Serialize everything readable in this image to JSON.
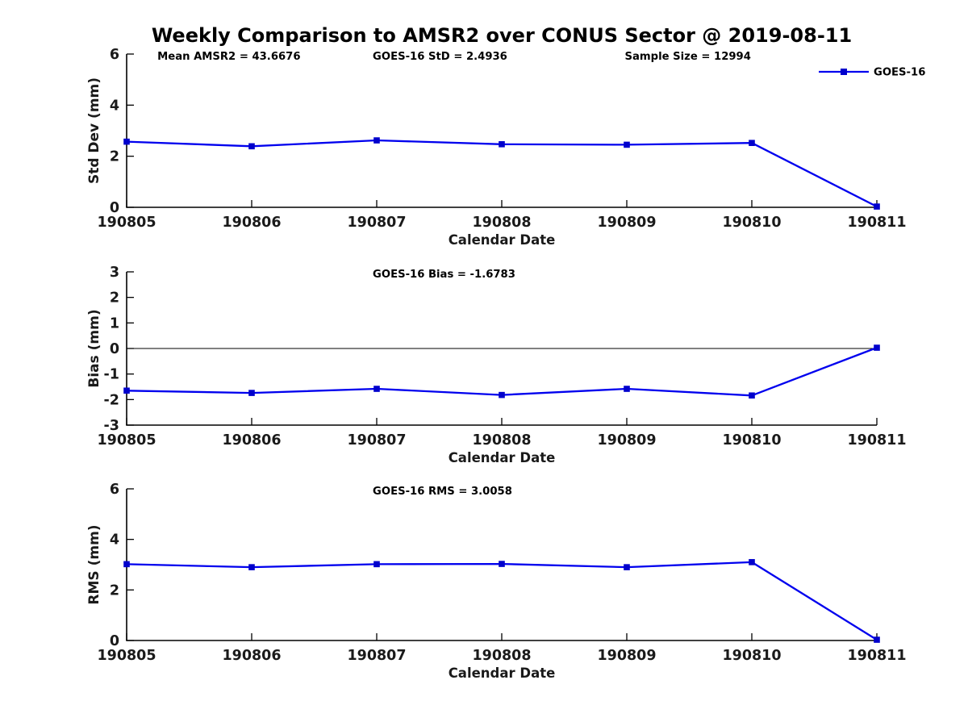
{
  "title": "Weekly Comparison to AMSR2 over CONUS Sector @ 2019-08-11",
  "legend": {
    "label": "GOES-16",
    "position": "top-right"
  },
  "colors": {
    "line": "#0000EE",
    "marker": "#0000CC",
    "axis": "#000000",
    "tick_text": "#1a1a1a",
    "annotation_text": "#000000",
    "background": "#ffffff"
  },
  "chart_data": [
    {
      "type": "line",
      "id": "std-dev",
      "xlabel": "Calendar Date",
      "ylabel": "Std Dev (mm)",
      "ylim": [
        0,
        6
      ],
      "yticks": [
        "0",
        "2",
        "4",
        "6"
      ],
      "x_categories": [
        "190805",
        "190806",
        "190807",
        "190808",
        "190809",
        "190810",
        "190811"
      ],
      "series": [
        {
          "name": "GOES-16",
          "marker": "square",
          "values": [
            2.57,
            2.39,
            2.62,
            2.47,
            2.45,
            2.52,
            0.03
          ]
        }
      ],
      "annotations": [
        {
          "text": "Mean AMSR2 = 43.6676",
          "xfrac": 0.041
        },
        {
          "text": "GOES-16 StD = 2.4936",
          "xfrac": 0.328
        },
        {
          "text": "Sample Size = 12994",
          "xfrac": 0.664
        }
      ],
      "zero_line": false,
      "legend_visible": true,
      "grid": false
    },
    {
      "type": "line",
      "id": "bias",
      "xlabel": "Calendar Date",
      "ylabel": "Bias (mm)",
      "ylim": [
        -3,
        3
      ],
      "yticks": [
        "-3",
        "-2",
        "-1",
        "0",
        "1",
        "2",
        "3"
      ],
      "x_categories": [
        "190805",
        "190806",
        "190807",
        "190808",
        "190809",
        "190810",
        "190811"
      ],
      "series": [
        {
          "name": "GOES-16",
          "marker": "square",
          "values": [
            -1.65,
            -1.74,
            -1.58,
            -1.82,
            -1.58,
            -1.84,
            0.03
          ]
        }
      ],
      "annotations": [
        {
          "text": "GOES-16 Bias  = -1.6783",
          "xfrac": 0.328
        }
      ],
      "zero_line": true,
      "legend_visible": false,
      "grid": false
    },
    {
      "type": "line",
      "id": "rms",
      "xlabel": "Calendar Date",
      "ylabel": "RMS (mm)",
      "ylim": [
        0,
        6
      ],
      "yticks": [
        "0",
        "2",
        "4",
        "6"
      ],
      "x_categories": [
        "190805",
        "190806",
        "190807",
        "190808",
        "190809",
        "190810",
        "190811"
      ],
      "series": [
        {
          "name": "GOES-16",
          "marker": "square",
          "values": [
            3.02,
            2.9,
            3.02,
            3.03,
            2.9,
            3.1,
            0.03
          ]
        }
      ],
      "annotations": [
        {
          "text": "GOES-16 RMS = 3.0058",
          "xfrac": 0.328
        }
      ],
      "zero_line": false,
      "legend_visible": false,
      "grid": false
    }
  ]
}
